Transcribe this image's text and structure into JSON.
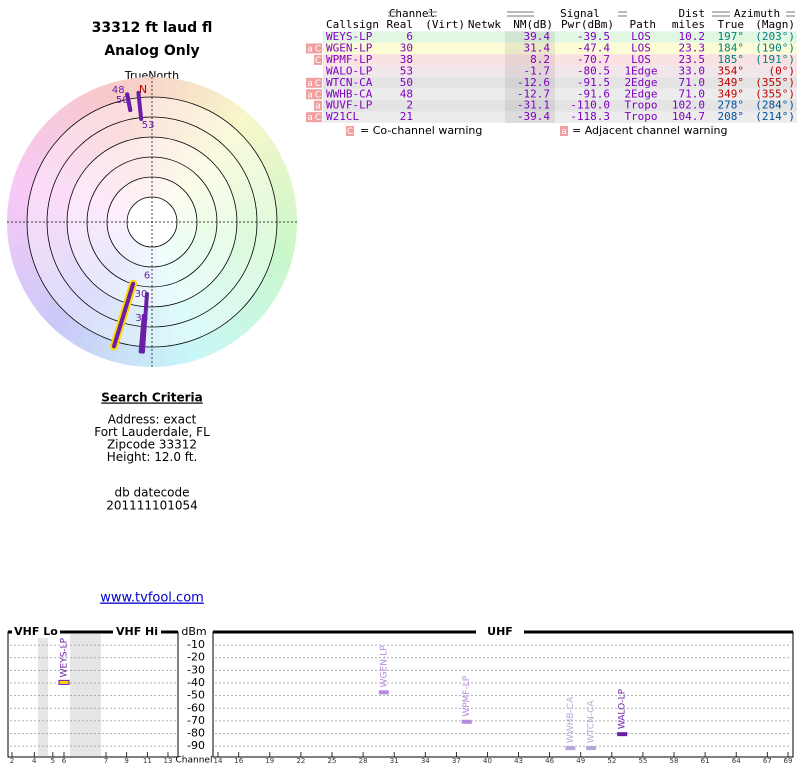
{
  "header": {
    "title": "33312 ft laud fl",
    "subtitle": "Analog Only"
  },
  "table": {
    "group_headers": [
      "Channel",
      "Signal",
      "Dist",
      "Azimuth"
    ],
    "columns": [
      "Callsign",
      "Real",
      "(Virt)",
      "Netwk",
      "NM(dB)",
      "Pwr(dBm)",
      "Path",
      "miles",
      "True",
      "(Magn)"
    ],
    "rows": [
      {
        "warnings": [],
        "callsign": "WEYS-LP",
        "real": "6",
        "nm": "39.4",
        "pwr": "-39.5",
        "path": "LOS",
        "miles": "10.2",
        "true": "197°",
        "magn": "(203°)"
      },
      {
        "warnings": [
          "a",
          "C"
        ],
        "callsign": "WGEN-LP",
        "real": "30",
        "nm": "31.4",
        "pwr": "-47.4",
        "path": "LOS",
        "miles": "23.3",
        "true": "184°",
        "magn": "(190°)"
      },
      {
        "warnings": [
          "C"
        ],
        "callsign": "WPMF-LP",
        "real": "38",
        "nm": "8.2",
        "pwr": "-70.7",
        "path": "LOS",
        "miles": "23.5",
        "true": "185°",
        "magn": "(191°)"
      },
      {
        "warnings": [],
        "callsign": "WALO-LP",
        "real": "53",
        "nm": "-1.7",
        "pwr": "-80.5",
        "path": "1Edge",
        "miles": "33.0",
        "true": "354°",
        "magn": "(0°)"
      },
      {
        "warnings": [
          "a",
          "C"
        ],
        "callsign": "WTCN-CA",
        "real": "50",
        "nm": "-12.6",
        "pwr": "-91.5",
        "path": "2Edge",
        "miles": "71.0",
        "true": "349°",
        "magn": "(355°)"
      },
      {
        "warnings": [
          "a",
          "C"
        ],
        "callsign": "WWHB-CA",
        "real": "48",
        "nm": "-12.7",
        "pwr": "-91.6",
        "path": "2Edge",
        "miles": "71.0",
        "true": "349°",
        "magn": "(355°)"
      },
      {
        "warnings": [
          "a"
        ],
        "callsign": "WUVF-LP",
        "real": "2",
        "nm": "-31.1",
        "pwr": "-110.0",
        "path": "Tropo",
        "miles": "102.0",
        "true": "278°",
        "magn": "(284°)"
      },
      {
        "warnings": [
          "a",
          "C"
        ],
        "callsign": "W21CL",
        "real": "21",
        "nm": "-39.4",
        "pwr": "-118.3",
        "path": "Tropo",
        "miles": "104.7",
        "true": "208°",
        "magn": "(214°)"
      }
    ]
  },
  "warning_legend": [
    {
      "icon": "C",
      "label": "= Co-channel warning"
    },
    {
      "icon": "a",
      "label": "= Adjacent channel warning"
    }
  ],
  "radar": {
    "north_label": "TrueNorth",
    "north_mark": "N"
  },
  "search": {
    "title": "Search Criteria",
    "lines": [
      "Address: exact",
      "Fort Lauderdale, FL",
      "Zipcode 33312",
      "Height: 12.0 ft."
    ],
    "datecode_label": "db datecode",
    "datecode": "201111101054"
  },
  "link": "www.tvfool.com",
  "spectrum": {
    "sections": [
      "VHF Lo",
      "VHF Hi",
      "UHF"
    ],
    "y_label": "dBm",
    "x_label": "Channel",
    "ylim": [
      -97,
      -2
    ],
    "yticks": [
      -10,
      -20,
      -30,
      -40,
      -50,
      -60,
      -70,
      -80,
      -90
    ],
    "vhf_channels": [
      2,
      4,
      5,
      6,
      7,
      9,
      11,
      13
    ],
    "uhf_channels": [
      14,
      16,
      19,
      22,
      25,
      28,
      31,
      34,
      37,
      40,
      43,
      46,
      49,
      52,
      55,
      58,
      61,
      64,
      67,
      69
    ],
    "stations": [
      {
        "name": "WEYS-LP",
        "channel": 6,
        "power": -39.5,
        "color": "#ffd700"
      },
      {
        "name": "WGEN-LP",
        "channel": 30,
        "power": -47.4,
        "color": "#b58ae0"
      },
      {
        "name": "WPMF-LP",
        "channel": 38,
        "power": -70.7,
        "color": "#b58ae0"
      },
      {
        "name": "WWHB-CA",
        "channel": 48,
        "power": -91.6,
        "color": "#b8a8d8"
      },
      {
        "name": "WTCN-CA",
        "channel": 50,
        "power": -91.5,
        "color": "#b8a8d8"
      },
      {
        "name": "WALO-LP",
        "channel": 53,
        "power": -80.5,
        "color": "#6a1fa8"
      }
    ]
  }
}
